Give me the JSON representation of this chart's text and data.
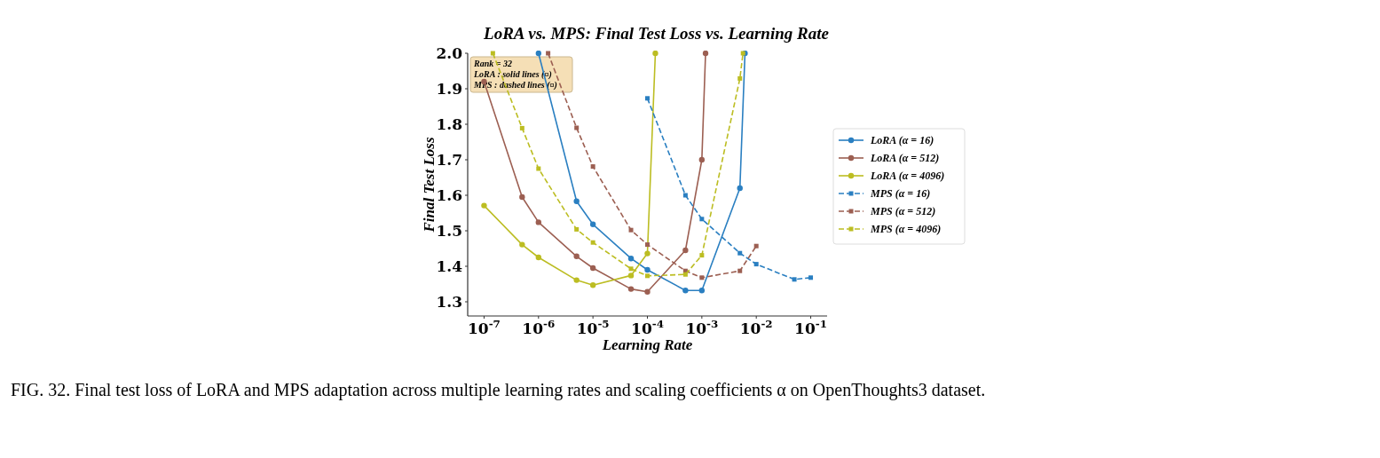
{
  "chart_data": {
    "type": "line",
    "title": "LoRA vs. MPS: Final Test Loss vs. Learning Rate",
    "xlabel": "Learning Rate",
    "ylabel": "Final Test Loss",
    "log": "x",
    "grid": false,
    "legend": "right",
    "xlim": [
      5e-08,
      0.2
    ],
    "ylim": [
      1.26,
      2.0
    ],
    "xticks": [
      {
        "value": 1e-07,
        "label": "10$^{-7}$"
      },
      {
        "value": 1e-06,
        "label": "10$^{-6}$"
      },
      {
        "value": 1e-05,
        "label": "10$^{-5}$"
      },
      {
        "value": 0.0001,
        "label": "10$^{-4}$"
      },
      {
        "value": 0.001,
        "label": "10$^{-3}$"
      },
      {
        "value": 0.01,
        "label": "10$^{-2}$"
      },
      {
        "value": 0.1,
        "label": "10$^{-1}$"
      }
    ],
    "yticks": [
      1.3,
      1.4,
      1.5,
      1.6,
      1.7,
      1.8,
      1.9,
      {
        "value": 2.0,
        "label": "2.0"
      }
    ],
    "series": [
      {
        "name": "LoRA (α = 16)",
        "color": "#2a7fc1",
        "marker": "circle",
        "line_style": "solid",
        "x": [
          1e-06,
          5e-06,
          1e-05,
          5e-05,
          0.0001,
          0.0005,
          0.001,
          0.005,
          0.0062
        ],
        "values": [
          2.0,
          1.583,
          1.518,
          1.422,
          1.39,
          1.332,
          1.332,
          1.62,
          2.0
        ]
      },
      {
        "name": "LoRA (α = 512)",
        "color": "#9c5f52",
        "marker": "circle",
        "line_style": "solid",
        "x": [
          1e-07,
          5e-07,
          1e-06,
          5e-06,
          1e-05,
          5e-05,
          0.0001,
          0.0005,
          0.001,
          0.00117
        ],
        "values": [
          1.92,
          1.595,
          1.524,
          1.428,
          1.395,
          1.336,
          1.328,
          1.445,
          1.7,
          2.0
        ]
      },
      {
        "name": "LoRA (α = 4096)",
        "color": "#bcbd22",
        "marker": "circle",
        "line_style": "solid",
        "x": [
          1e-07,
          5e-07,
          1e-06,
          5e-06,
          1e-05,
          5e-05,
          0.0001,
          0.00014
        ],
        "values": [
          1.571,
          1.461,
          1.425,
          1.361,
          1.347,
          1.374,
          1.436,
          2.0
        ]
      },
      {
        "name": "MPS (α = 16)",
        "color": "#2a7fc1",
        "marker": "square",
        "line_style": "dashed",
        "x": [
          0.0001,
          0.0005,
          0.001,
          0.005,
          0.01,
          0.05,
          0.1
        ],
        "values": [
          1.873,
          1.6,
          1.533,
          1.437,
          1.406,
          1.363,
          1.368
        ]
      },
      {
        "name": "MPS (α = 512)",
        "color": "#9c5f52",
        "marker": "square",
        "line_style": "dashed",
        "x": [
          1.5e-06,
          5e-06,
          1e-05,
          5e-05,
          0.0001,
          0.0005,
          0.001,
          0.005,
          0.01
        ],
        "values": [
          2.0,
          1.79,
          1.681,
          1.502,
          1.461,
          1.387,
          1.368,
          1.387,
          1.457
        ]
      },
      {
        "name": "MPS (α = 4096)",
        "color": "#bcbd22",
        "marker": "square",
        "line_style": "dashed",
        "x": [
          1.45e-07,
          5e-07,
          1e-06,
          5e-06,
          1e-05,
          5e-05,
          0.0001,
          0.0005,
          0.001,
          0.005,
          0.0057
        ],
        "values": [
          2.0,
          1.789,
          1.675,
          1.504,
          1.467,
          1.393,
          1.373,
          1.377,
          1.431,
          1.929,
          2.0
        ]
      }
    ],
    "annotations": [
      "Rank = 32",
      "LoRA : solid lines (¤)",
      "MPS : dashed lines (¤)",
      "FIG. 32. Final test loss of LoRA and MPS adaptation across multiple learning rates and scaling coefficients α on OpenThoughts3 dataset."
    ]
  }
}
